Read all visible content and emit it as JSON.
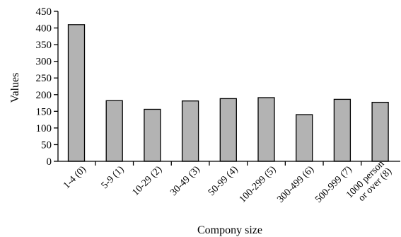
{
  "chart_data": {
    "type": "bar",
    "title": "",
    "xlabel": "Compony size",
    "ylabel": "Values",
    "categories": [
      [
        "1-4 (0)"
      ],
      [
        "5-9 (1)"
      ],
      [
        "10-29 (2)"
      ],
      [
        "30-49 (3)"
      ],
      [
        "50-99 (4)"
      ],
      [
        "100-299 (5)"
      ],
      [
        "300-499 (6)"
      ],
      [
        "500-999 (7)"
      ],
      [
        "1000 person",
        "or over (8)"
      ]
    ],
    "values": [
      410,
      182,
      156,
      181,
      188,
      191,
      140,
      186,
      177
    ],
    "ylim": [
      0,
      450
    ],
    "yticks": [
      0,
      50,
      100,
      150,
      200,
      250,
      300,
      350,
      400,
      450
    ],
    "grid": false,
    "legend": "none",
    "bar_color": "#b3b3b3",
    "edge_color": "#000000"
  }
}
